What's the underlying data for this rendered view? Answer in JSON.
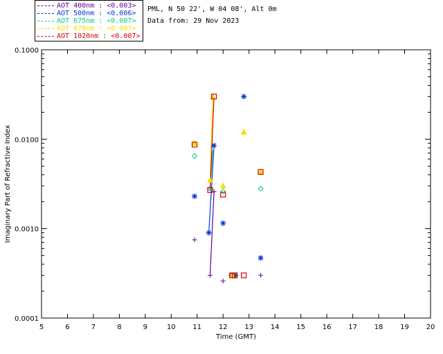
{
  "colors": {
    "400nm": "#5a00a0",
    "500nm": "#0033dd",
    "675nm": "#00cc88",
    "870nm": "#f0e000",
    "1020nm": "#dd0000"
  },
  "legend": [
    {
      "text": "AOT  400nm : <0.003>",
      "color_key": "400nm"
    },
    {
      "text": "AOT  500nm : <0.006>",
      "color_key": "500nm"
    },
    {
      "text": "AOT  675nm : <0.007>",
      "color_key": "675nm"
    },
    {
      "text": "AOT  870nm : <0.007>",
      "color_key": "870nm"
    },
    {
      "text": "AOT 1020nm : <0.007>",
      "color_key": "1020nm"
    }
  ],
  "site": "PML, N 50 22', W 04 08', Alt 0m",
  "date": "Data from: 29 Nov 2023",
  "chart_data": {
    "type": "scatter",
    "xlabel": "Time (GMT)",
    "ylabel": "Imaginary Part of Refractive Index",
    "xlim": [
      5,
      20
    ],
    "ylim": [
      0.0001,
      0.1
    ],
    "yscale": "log",
    "xticks": [
      5,
      6,
      7,
      8,
      9,
      10,
      11,
      12,
      13,
      14,
      15,
      16,
      17,
      18,
      19,
      20
    ],
    "yticks": [
      {
        "v": 0.0001,
        "label": "0.0001"
      },
      {
        "v": 0.001,
        "label": "0.0010"
      },
      {
        "v": 0.01,
        "label": "0.0100"
      },
      {
        "v": 0.1,
        "label": "0.1000"
      }
    ],
    "series": [
      {
        "name": "400nm",
        "marker": "plus",
        "points": [
          [
            10.9,
            0.00075
          ],
          [
            11.5,
            0.0003
          ],
          [
            11.65,
            0.0026
          ],
          [
            12.0,
            0.00026
          ],
          [
            12.3,
            0.0003
          ],
          [
            12.5,
            0.0003
          ],
          [
            13.45,
            0.0003
          ]
        ],
        "line": [
          [
            11.5,
            0.0003
          ],
          [
            11.65,
            0.0026
          ]
        ]
      },
      {
        "name": "500nm",
        "marker": "asterisk",
        "points": [
          [
            10.9,
            0.0023
          ],
          [
            11.45,
            0.0009
          ],
          [
            11.65,
            0.0085
          ],
          [
            12.0,
            0.00115
          ],
          [
            12.35,
            0.0003
          ],
          [
            12.45,
            0.0003
          ],
          [
            12.8,
            0.03
          ],
          [
            13.45,
            0.00047
          ]
        ],
        "line": [
          [
            11.45,
            0.0009
          ],
          [
            11.65,
            0.0085
          ]
        ]
      },
      {
        "name": "675nm",
        "marker": "diamond",
        "points": [
          [
            10.9,
            0.0065
          ],
          [
            11.5,
            0.0028
          ],
          [
            12.0,
            0.0026
          ],
          [
            12.35,
            0.0003
          ],
          [
            12.45,
            0.0003
          ],
          [
            13.45,
            0.0028
          ]
        ],
        "line": [
          [
            11.5,
            0.0028
          ],
          [
            11.6,
            0.0075
          ]
        ]
      },
      {
        "name": "870nm",
        "marker": "triangle",
        "points": [
          [
            10.9,
            0.009
          ],
          [
            11.5,
            0.0035
          ],
          [
            11.6,
            0.03
          ],
          [
            12.0,
            0.003
          ],
          [
            12.35,
            0.0003
          ],
          [
            12.8,
            0.012
          ],
          [
            13.45,
            0.0043
          ]
        ],
        "line": [
          [
            11.5,
            0.0035
          ],
          [
            11.6,
            0.03
          ]
        ]
      },
      {
        "name": "1020nm",
        "marker": "square",
        "points": [
          [
            10.9,
            0.0087
          ],
          [
            11.5,
            0.0027
          ],
          [
            11.65,
            0.03
          ],
          [
            12.0,
            0.0024
          ],
          [
            12.35,
            0.0003
          ],
          [
            12.45,
            0.0003
          ],
          [
            12.8,
            0.0003
          ],
          [
            13.45,
            0.0043
          ]
        ],
        "line": [
          [
            11.5,
            0.0027
          ],
          [
            11.65,
            0.03
          ]
        ]
      }
    ]
  }
}
